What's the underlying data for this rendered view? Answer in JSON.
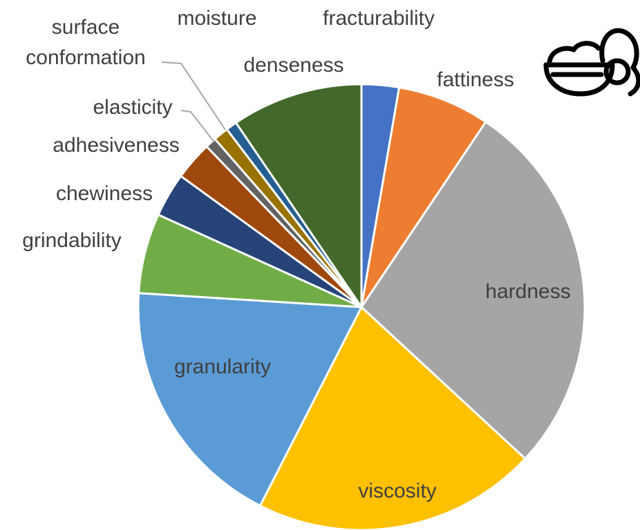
{
  "chart_data": {
    "type": "pie",
    "categories": [
      "fracturability",
      "fattiness",
      "hardness",
      "viscosity",
      "granularity",
      "grindability",
      "chewiness",
      "adhesiveness",
      "elasticity",
      "surface conformation",
      "moisture",
      "denseness"
    ],
    "values": [
      2.7,
      6.7,
      27.5,
      20.6,
      18.5,
      5.8,
      3.2,
      2.8,
      0.8,
      1.1,
      0.8,
      9.5
    ],
    "colors": [
      "#4472c4",
      "#ed7d31",
      "#a5a5a5",
      "#ffc000",
      "#5b9bd5",
      "#70ad47",
      "#264478",
      "#9e480e",
      "#636363",
      "#997300",
      "#255e91",
      "#43682b"
    ]
  }
}
